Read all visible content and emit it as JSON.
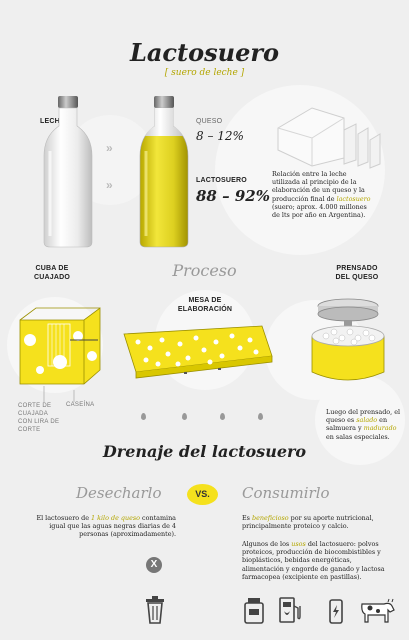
{
  "title": "Lactosuero",
  "subtitle": "[ suero de leche ]",
  "leche_label": "LECHE",
  "queso": {
    "label": "QUESO",
    "percent": "8 – 12%"
  },
  "lactosuero": {
    "label": "LACTOSUERO",
    "percent": "88 – 92%"
  },
  "relacion": {
    "text_1": "Relación entre la leche utilizada al principio de la elaboración de un queso y la producción final de ",
    "highlight": "lactosuero",
    "text_2": " (suero; aprox. 4.000 millones de lts por año en Argentina)."
  },
  "proceso": {
    "title": "Proceso",
    "cuba": "CUBA DE CUAJADO",
    "mesa": "MESA DE ELABORACIÓN",
    "prensado": "PRENSADO DEL QUESO",
    "corte": "CORTE DE CUAJADA CON LIRA DE CORTE",
    "caseina": "CASEÍNA",
    "prensado_text_1": "Luego del prensado, el queso es ",
    "prensado_hl_1": "salado",
    "prensado_text_2": " en salmuera y ",
    "prensado_hl_2": "madurado",
    "prensado_text_3": " en salas especiales."
  },
  "drenaje": {
    "title": "Drenaje del lactosuero",
    "desecharlo": "Desecharlo",
    "vs": "VS.",
    "consumirlo": "Consumirlo",
    "desechar_text_1": "El lactosuero de ",
    "desechar_hl": "1 kilo de queso",
    "desechar_text_2": " contamina igual que las aguas negras diarias de 4 personas (aproximadamente).",
    "x_mark": "X",
    "consumir_p1_1": "Es ",
    "consumir_p1_hl": "beneficioso",
    "consumir_p1_2": " por su aporte nutricional, principalmente proteico y calcio.",
    "consumir_p2_1": "Algunos de los ",
    "consumir_p2_hl": "usos",
    "consumir_p2_2": " del lactosuero: polvos proteicos, producción de biocombistibles y bioplásticos, bebidas energéticas, alimentación y engorde de ganado y lactosa farmacopea (excipiente en pastillas)."
  },
  "icons": [
    "trash-icon",
    "protein-powder-icon",
    "fuel-pump-icon",
    "energy-drink-icon",
    "cow-icon"
  ],
  "colors": {
    "accent": "#f5e11d",
    "highlight": "#b3a600",
    "background": "#efefef"
  }
}
